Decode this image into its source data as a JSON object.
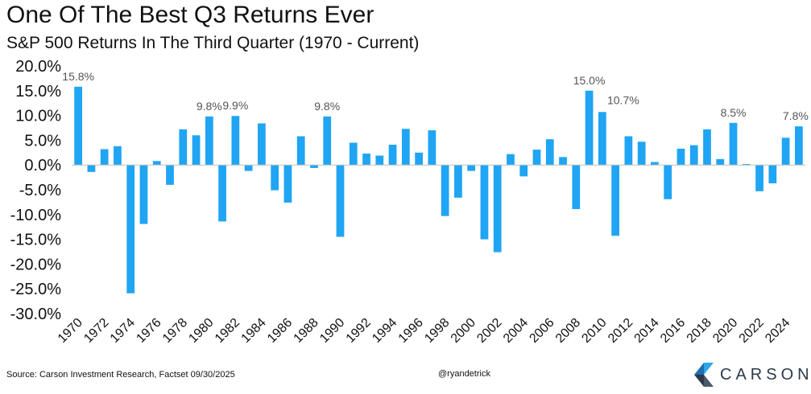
{
  "header": {
    "title": "One Of The Best Q3 Returns Ever",
    "subtitle": "S&P 500 Returns In The Third Quarter (1970 - Current)"
  },
  "footer": {
    "source": "Source: Carson Investment Research, Factset 09/30/2025",
    "handle": "@ryandetrick",
    "brand": "CARSON",
    "brand_icon": "carson-logo-icon"
  },
  "colors": {
    "bar": "#1fa5f3",
    "text": "#111111",
    "annotation": "#555555",
    "brand": "#2b3a4a"
  },
  "chart_data": {
    "type": "bar",
    "title": "One Of The Best Q3 Returns Ever",
    "subtitle": "S&P 500 Returns In The Third Quarter (1970 - Current)",
    "categories": [
      "1970",
      "1971",
      "1972",
      "1973",
      "1974",
      "1975",
      "1976",
      "1977",
      "1978",
      "1979",
      "1980",
      "1981",
      "1982",
      "1983",
      "1984",
      "1985",
      "1986",
      "1987",
      "1988",
      "1989",
      "1990",
      "1991",
      "1992",
      "1993",
      "1994",
      "1995",
      "1996",
      "1997",
      "1998",
      "1999",
      "2000",
      "2001",
      "2002",
      "2003",
      "2004",
      "2005",
      "2006",
      "2007",
      "2008",
      "2009",
      "2010",
      "2011",
      "2012",
      "2013",
      "2014",
      "2015",
      "2016",
      "2017",
      "2018",
      "2019",
      "2020",
      "2021",
      "2022",
      "2023",
      "2024",
      "2025"
    ],
    "values": [
      15.8,
      -1.4,
      3.2,
      3.8,
      -25.9,
      -11.9,
      0.8,
      -4.0,
      7.2,
      6.0,
      9.8,
      -11.4,
      9.9,
      -1.2,
      8.4,
      -5.1,
      -7.6,
      5.8,
      -0.6,
      9.8,
      -14.5,
      4.5,
      2.3,
      1.9,
      4.1,
      7.3,
      2.5,
      7.0,
      -10.3,
      -6.6,
      -1.2,
      -15.0,
      -17.6,
      2.2,
      -2.3,
      3.1,
      5.2,
      1.6,
      -8.9,
      15.0,
      10.7,
      -14.3,
      5.8,
      4.7,
      0.6,
      -6.9,
      3.3,
      4.0,
      7.2,
      1.2,
      8.5,
      0.2,
      -5.3,
      -3.7,
      5.5,
      7.8
    ],
    "labels": [
      {
        "category": "1970",
        "text": "15.8%"
      },
      {
        "category": "1980",
        "text": "9.8%"
      },
      {
        "category": "1982",
        "text": "9.9%"
      },
      {
        "category": "1989",
        "text": "9.8%"
      },
      {
        "category": "2009",
        "text": "15.0%"
      },
      {
        "category": "2010",
        "text": "10.7%"
      },
      {
        "category": "2020",
        "text": "8.5%"
      },
      {
        "category": "2025",
        "text": "7.8%"
      }
    ],
    "x_ticks": [
      "1970",
      "1972",
      "1974",
      "1976",
      "1978",
      "1980",
      "1982",
      "1984",
      "1986",
      "1988",
      "1990",
      "1992",
      "1994",
      "1996",
      "1998",
      "2000",
      "2002",
      "2004",
      "2006",
      "2008",
      "2010",
      "2012",
      "2014",
      "2016",
      "2018",
      "2020",
      "2022",
      "2024"
    ],
    "y_ticks": [
      20,
      15,
      10,
      5,
      0,
      -5,
      -10,
      -15,
      -20,
      -25,
      -30
    ],
    "y_tick_labels": [
      "20.0%",
      "15.0%",
      "10.0%",
      "5.0%",
      "0.0%",
      "-5.0%",
      "-10.0%",
      "-15.0%",
      "-20.0%",
      "-25.0%",
      "-30.0%"
    ],
    "ylim": [
      -30,
      20
    ],
    "grid": false,
    "legend": "none"
  }
}
